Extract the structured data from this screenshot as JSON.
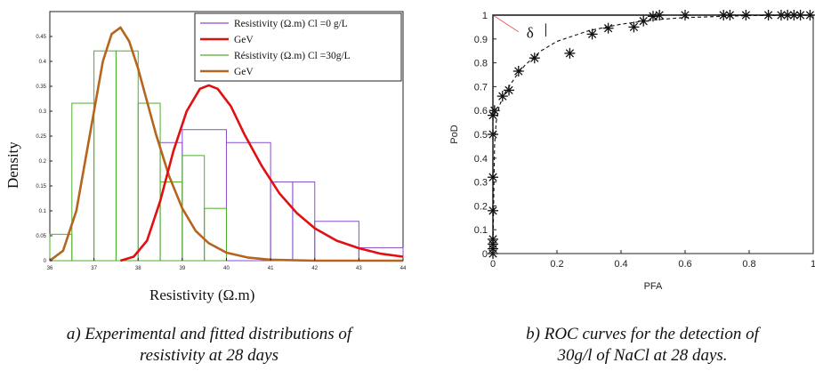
{
  "charts": {
    "a": {
      "ylabel": "Density",
      "xlabel": "Resistivity (Ω.m)",
      "caption_lines": [
        "a) Experimental and fitted distributions of",
        "resistivity at 28 days"
      ]
    },
    "b": {
      "ylabel": "PoD",
      "xlabel": "PFA",
      "annotation": "δ",
      "caption_lines": [
        "b) ROC curves for the detection of",
        "30g/l of NaCl at 28 days."
      ]
    }
  },
  "chart_data": [
    {
      "type": "bar",
      "xlabel": "Resistivity (Ω.m)",
      "ylabel": "Density",
      "xlim": [
        36,
        44
      ],
      "ylim": [
        0,
        0.5
      ],
      "x_ticks": [
        "36",
        "37",
        "38",
        "39",
        "40",
        "41",
        "42",
        "43",
        "44"
      ],
      "y_ticks": [
        "0",
        "0.05",
        "0.1",
        "0.15",
        "0.2",
        "0.25",
        "0.3",
        "0.35",
        "0.4",
        "0.45"
      ],
      "legend_position": "top-right",
      "legend": [
        {
          "label": "Resistivity (Ω.m) Cl =0 g/L",
          "color": "#8a4fc9",
          "kind": "histogram"
        },
        {
          "label": "GeV",
          "color": "#e01010",
          "kind": "fit"
        },
        {
          "label": "Résistivity (Ω.m) Cl =30g/L",
          "color": "#4caf2a",
          "kind": "histogram"
        },
        {
          "label": "GeV",
          "color": "#b5651d",
          "kind": "fit"
        }
      ],
      "histograms": [
        {
          "name": "Resistivity (Ω.m) Cl =0 g/L",
          "color": "#8a4fc9",
          "bins": [
            {
              "x0": 38.5,
              "x1": 39.0,
              "y": 0.237
            },
            {
              "x0": 39.0,
              "x1": 40.0,
              "y": 0.263
            },
            {
              "x0": 40.0,
              "x1": 41.0,
              "y": 0.237
            },
            {
              "x0": 41.0,
              "x1": 41.5,
              "y": 0.158
            },
            {
              "x0": 41.5,
              "x1": 42.0,
              "y": 0.158
            },
            {
              "x0": 42.0,
              "x1": 43.0,
              "y": 0.079
            },
            {
              "x0": 43.0,
              "x1": 44.0,
              "y": 0.026
            }
          ]
        },
        {
          "name": "Résistivity (Ω.m) Cl =30g/L",
          "color": "#4caf2a",
          "bins": [
            {
              "x0": 36.0,
              "x1": 36.5,
              "y": 0.053
            },
            {
              "x0": 36.5,
              "x1": 37.0,
              "y": 0.316
            },
            {
              "x0": 37.0,
              "x1": 37.5,
              "y": 0.421
            },
            {
              "x0": 37.5,
              "x1": 38.0,
              "y": 0.421
            },
            {
              "x0": 38.0,
              "x1": 38.5,
              "y": 0.316
            },
            {
              "x0": 38.5,
              "x1": 39.0,
              "y": 0.158
            },
            {
              "x0": 39.0,
              "x1": 39.5,
              "y": 0.211
            },
            {
              "x0": 39.5,
              "x1": 40.0,
              "y": 0.105
            }
          ]
        }
      ],
      "curves": [
        {
          "name": "GeV",
          "color": "#b5651d",
          "x": [
            36.0,
            36.3,
            36.6,
            36.9,
            37.2,
            37.4,
            37.6,
            37.8,
            38.0,
            38.2,
            38.4,
            38.7,
            39.0,
            39.3,
            39.6,
            40.0,
            40.5,
            41.0,
            42.0,
            43.0,
            44.0
          ],
          "y": [
            0.0,
            0.02,
            0.1,
            0.25,
            0.4,
            0.455,
            0.468,
            0.44,
            0.385,
            0.32,
            0.255,
            0.17,
            0.105,
            0.06,
            0.035,
            0.016,
            0.006,
            0.002,
            0.0,
            0.0,
            0.0
          ]
        },
        {
          "name": "GeV",
          "color": "#e01010",
          "x": [
            37.6,
            37.9,
            38.2,
            38.5,
            38.8,
            39.1,
            39.4,
            39.6,
            39.8,
            40.1,
            40.4,
            40.8,
            41.2,
            41.6,
            42.0,
            42.5,
            43.0,
            43.5,
            44.0
          ],
          "y": [
            0.0,
            0.008,
            0.04,
            0.12,
            0.22,
            0.3,
            0.345,
            0.352,
            0.345,
            0.31,
            0.255,
            0.19,
            0.135,
            0.095,
            0.065,
            0.04,
            0.025,
            0.014,
            0.008
          ]
        }
      ]
    },
    {
      "type": "scatter",
      "xlabel": "PFA",
      "ylabel": "PoD",
      "xlim": [
        0,
        1
      ],
      "ylim": [
        0,
        1
      ],
      "x_ticks": [
        "0",
        "0.2",
        "0.4",
        "0.6",
        "0.8",
        "1"
      ],
      "y_ticks": [
        "0",
        "0.1",
        "0.2",
        "0.3",
        "0.4",
        "0.5",
        "0.6",
        "0.7",
        "0.8",
        "0.9",
        "1"
      ],
      "annotation": "δ",
      "series": [
        {
          "name": "",
          "marker": "asterisk",
          "points": [
            [
              0,
              0.0
            ],
            [
              0,
              0.02
            ],
            [
              0,
              0.04
            ],
            [
              0,
              0.06
            ],
            [
              0,
              0.18
            ],
            [
              0,
              0.32
            ],
            [
              0,
              0.5
            ],
            [
              0,
              0.58
            ],
            [
              0.005,
              0.6
            ],
            [
              0.03,
              0.66
            ],
            [
              0.05,
              0.685
            ],
            [
              0.08,
              0.765
            ],
            [
              0.13,
              0.82
            ],
            [
              0.24,
              0.84
            ],
            [
              0.31,
              0.92
            ],
            [
              0.36,
              0.945
            ],
            [
              0.44,
              0.95
            ],
            [
              0.47,
              0.975
            ],
            [
              0.5,
              0.995
            ],
            [
              0.52,
              1.0
            ],
            [
              0.6,
              1.0
            ],
            [
              0.72,
              1.0
            ],
            [
              0.74,
              1.0
            ],
            [
              0.79,
              1.0
            ],
            [
              0.86,
              1.0
            ],
            [
              0.9,
              1.0
            ],
            [
              0.92,
              1.0
            ],
            [
              0.94,
              1.0
            ],
            [
              0.96,
              1.0
            ],
            [
              0.99,
              1.0
            ]
          ]
        }
      ],
      "curves": [
        {
          "name": "",
          "style": "dashed",
          "x": [
            0,
            0.005,
            0.01,
            0.02,
            0.04,
            0.07,
            0.1,
            0.15,
            0.2,
            0.3,
            0.4,
            0.5,
            0.6,
            0.8,
            1.0
          ],
          "y": [
            0,
            0.45,
            0.55,
            0.62,
            0.68,
            0.74,
            0.79,
            0.85,
            0.89,
            0.935,
            0.962,
            0.98,
            0.99,
            0.998,
            1.0
          ]
        },
        {
          "name": "",
          "style": "solid",
          "x": [
            0,
            0,
            1.0
          ],
          "y": [
            0,
            1.0,
            1.0
          ]
        }
      ]
    }
  ]
}
